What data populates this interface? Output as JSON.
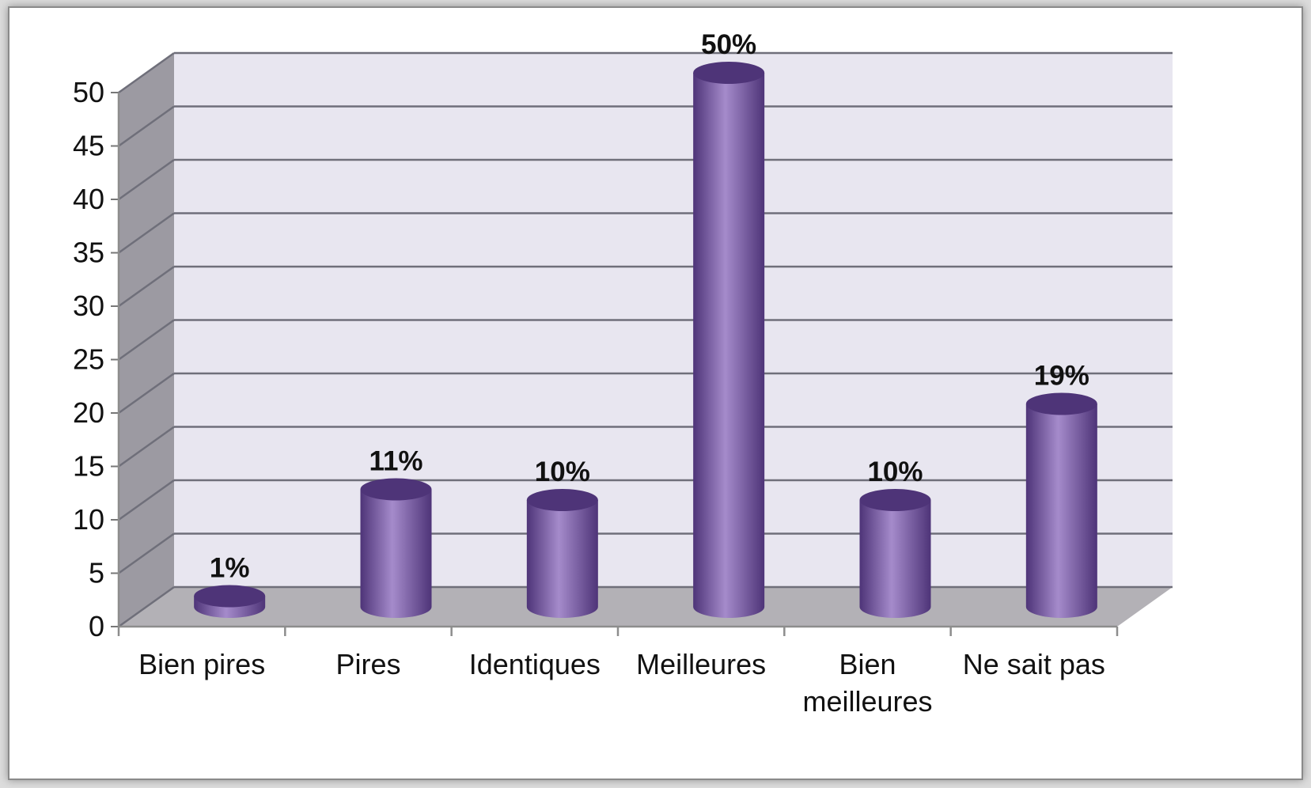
{
  "chart_data": {
    "type": "bar",
    "categories": [
      "Bien pires",
      "Pires",
      "Identiques",
      "Meilleures",
      "Bien meilleures",
      "Ne sait pas"
    ],
    "category_lines": [
      [
        "Bien pires"
      ],
      [
        "Pires"
      ],
      [
        "Identiques"
      ],
      [
        "Meilleures"
      ],
      [
        "Bien",
        "meilleures"
      ],
      [
        "Ne sait pas"
      ]
    ],
    "values": [
      1,
      11,
      10,
      50,
      10,
      19
    ],
    "data_labels": [
      "1%",
      "11%",
      "10%",
      "50%",
      "10%",
      "19%"
    ],
    "ylim": [
      0,
      50
    ],
    "yticks": [
      0,
      5,
      10,
      15,
      20,
      25,
      30,
      35,
      40,
      45,
      50
    ],
    "grid": true,
    "legend": "none",
    "title": "",
    "xlabel": "",
    "ylabel": "",
    "style": "3d-cylinder",
    "colors": {
      "bar": "#7b5aa6",
      "bar_dark": "#4e3478",
      "bar_light": "#a58bcb",
      "back_wall": "#e8e6f0",
      "side_wall": "#9c9aa2",
      "floor": "#b3b1b6",
      "gridline": "#6f6f7a"
    }
  }
}
